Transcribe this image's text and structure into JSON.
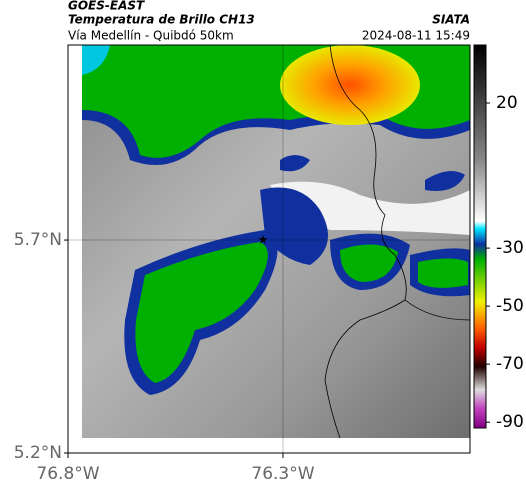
{
  "header": {
    "satellite": "GOES-EAST",
    "title": "Temperatura de Brillo CH13",
    "source": "SIATA",
    "subtitle": "Vía Medellín - Quibdó 50km",
    "datetime": "2024-08-11 15:49"
  },
  "map": {
    "xlim": [
      -76.8,
      -75.865
    ],
    "ylim": [
      5.2,
      6.158
    ],
    "grid": true,
    "xticks": [
      {
        "value": -76.8,
        "label": "76.8°W"
      },
      {
        "value": -76.3,
        "label": "76.3°W"
      }
    ],
    "yticks": [
      {
        "value": 5.7,
        "label": "5.7°N"
      },
      {
        "value": 5.2,
        "label": "5.2°N"
      }
    ]
  },
  "colorbar": {
    "lim": [
      -92,
      40
    ],
    "ticks": [
      20,
      -30,
      -50,
      -70,
      -90
    ]
  }
}
